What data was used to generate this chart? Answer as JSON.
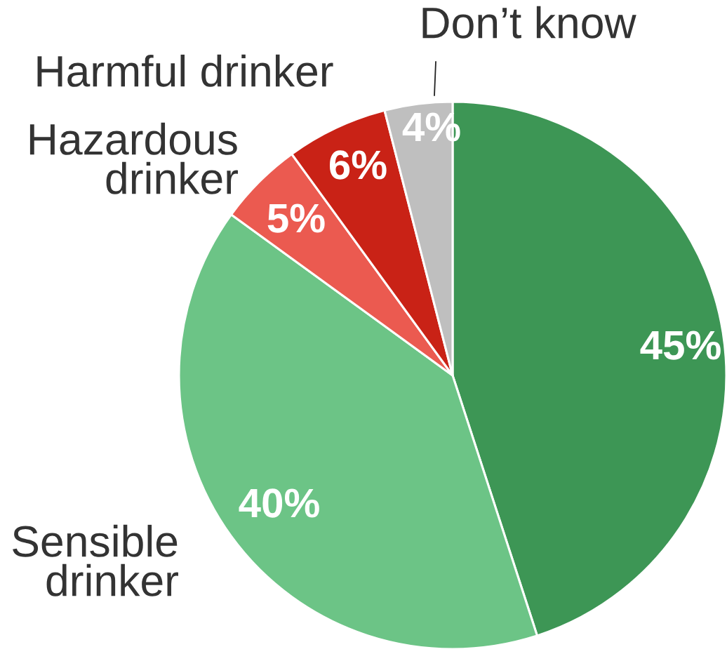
{
  "chart_data": {
    "type": "pie",
    "categories": [
      null,
      "Sensible\ndrinker",
      "Hazardous\ndrinker",
      "Harmful drinker",
      "Don’t know"
    ],
    "values": [
      45,
      40,
      5,
      6,
      4
    ],
    "colors": [
      "#3d9655",
      "#6cc486",
      "#eb5a50",
      "#c92216",
      "#bfbfbf"
    ],
    "value_labels": [
      "45%",
      "40%",
      "5%",
      "6%",
      "4%"
    ]
  }
}
